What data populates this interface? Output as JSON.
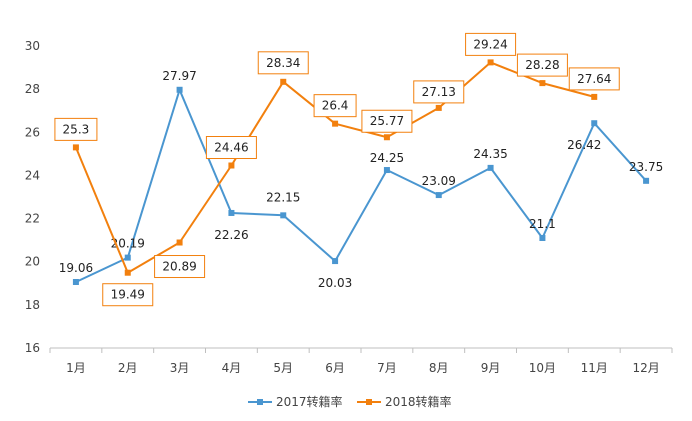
{
  "chart_data": {
    "type": "line",
    "title": "",
    "xlabel": "",
    "ylabel": "",
    "categories": [
      "1月",
      "2月",
      "3月",
      "4月",
      "5月",
      "6月",
      "7月",
      "8月",
      "9月",
      "10月",
      "11月",
      "12月"
    ],
    "ylim": [
      16,
      30
    ],
    "yticks": [
      "16",
      "18",
      "20",
      "22",
      "24",
      "26",
      "28",
      "30"
    ],
    "grid": false,
    "legend_position": "bottom",
    "series": [
      {
        "name": "2017转籍率",
        "color": "#4a96d0",
        "values": [
          19.06,
          20.19,
          27.97,
          22.26,
          22.15,
          20.03,
          24.25,
          23.09,
          24.35,
          21.1,
          26.42,
          23.75
        ],
        "labels": [
          "19.06",
          "20.19",
          "27.97",
          "22.26",
          "22.15",
          "20.03",
          "24.25",
          "23.09",
          "24.35",
          "21.1",
          "26.42",
          "23.75"
        ],
        "boxed_labels": false
      },
      {
        "name": "2018转籍率",
        "color": "#f2800e",
        "values": [
          25.3,
          19.49,
          20.89,
          24.46,
          28.34,
          26.4,
          25.77,
          27.13,
          29.24,
          28.28,
          27.64,
          null
        ],
        "labels": [
          "25.3",
          "19.49",
          "20.89",
          "24.46",
          "28.34",
          "26.4",
          "25.77",
          "27.13",
          "29.24",
          "28.28",
          "27.64",
          null
        ],
        "boxed_labels": true
      }
    ]
  }
}
